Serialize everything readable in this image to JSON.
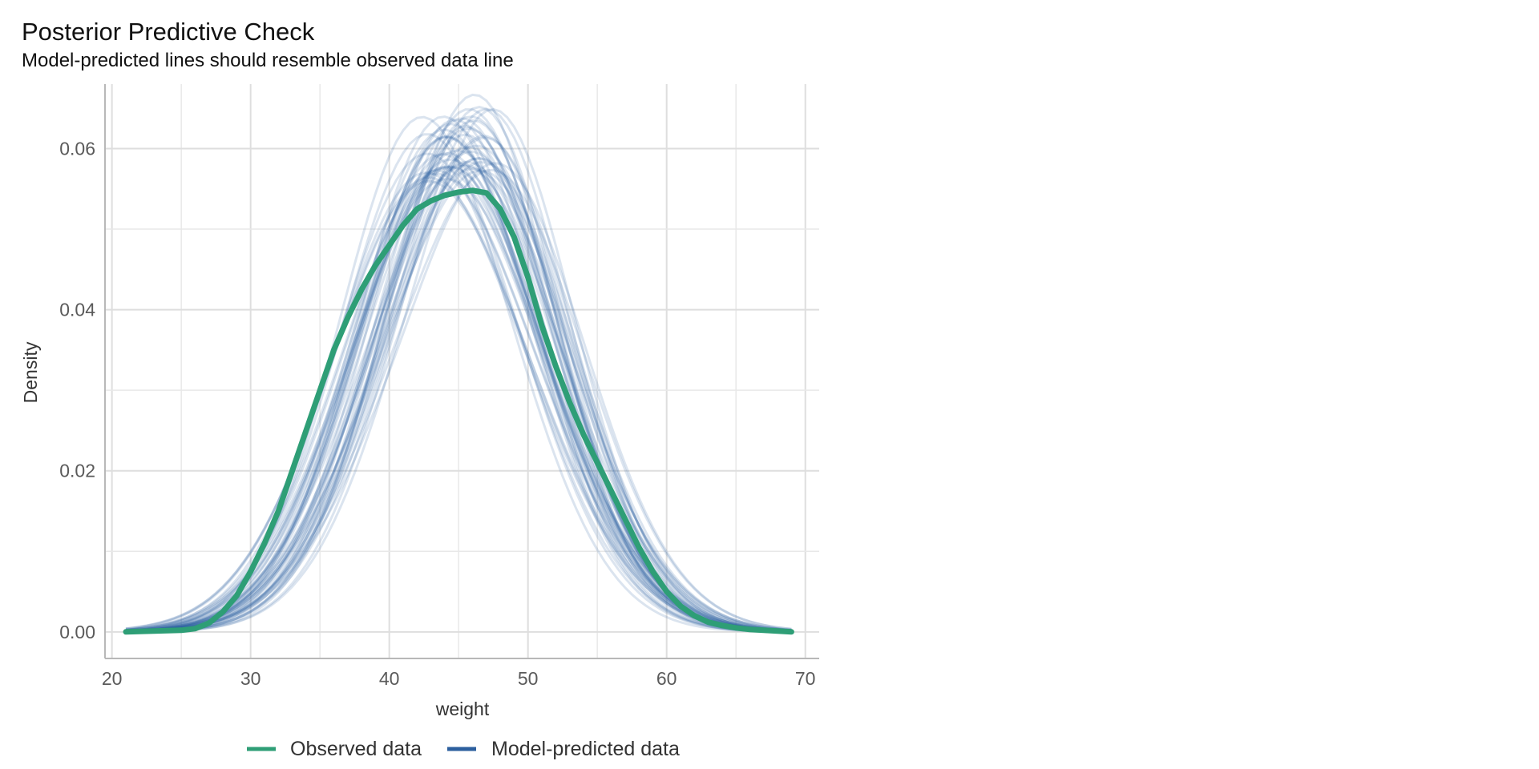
{
  "chart_data": {
    "type": "line",
    "title": "Posterior Predictive Check",
    "subtitle": "Model-predicted lines should resemble observed data line",
    "xlabel": "weight",
    "ylabel": "Density",
    "xlim": [
      19.5,
      71
    ],
    "ylim": [
      -0.0033,
      0.068
    ],
    "x_ticks": [
      20,
      30,
      40,
      50,
      60,
      70
    ],
    "y_ticks": [
      0.0,
      0.02,
      0.04,
      0.06
    ],
    "y_tick_labels": [
      "0.00",
      "0.02",
      "0.04",
      "0.06"
    ],
    "grid": true,
    "legend_position": "bottom",
    "series": [
      {
        "name": "Observed data",
        "color": "#2e9e76",
        "x": [
          21,
          23,
          25,
          26,
          27,
          28,
          29,
          30,
          31,
          32,
          33,
          34,
          35,
          36,
          37,
          38,
          39,
          40,
          41,
          42,
          43,
          44,
          45,
          46,
          47,
          48,
          49,
          50,
          51,
          52,
          53,
          54,
          55,
          56,
          57,
          58,
          59,
          60,
          61,
          62,
          63,
          64,
          65,
          66,
          67,
          68,
          69
        ],
        "y": [
          0.0,
          0.0001,
          0.0002,
          0.0004,
          0.0011,
          0.0025,
          0.0045,
          0.0075,
          0.011,
          0.015,
          0.02,
          0.025,
          0.03,
          0.035,
          0.039,
          0.0425,
          0.0455,
          0.048,
          0.0505,
          0.0525,
          0.0535,
          0.0542,
          0.0546,
          0.0548,
          0.0545,
          0.0525,
          0.049,
          0.044,
          0.038,
          0.033,
          0.0285,
          0.0245,
          0.021,
          0.0175,
          0.014,
          0.0105,
          0.0075,
          0.005,
          0.0032,
          0.002,
          0.0012,
          0.0008,
          0.0005,
          0.0003,
          0.0002,
          0.0001,
          0.0
        ]
      },
      {
        "name": "Model-predicted data",
        "color": "#2c5f9e",
        "draws": 50,
        "x_range": [
          21,
          69
        ],
        "mean_range": [
          43.6,
          46.4
        ],
        "sd_range": [
          6.1,
          7.2
        ]
      }
    ]
  }
}
